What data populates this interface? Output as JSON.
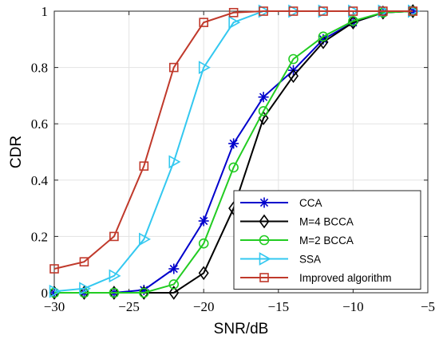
{
  "chart_data": {
    "type": "line",
    "xlabel": "SNR/dB",
    "ylabel": "CDR",
    "xlim": [
      -30,
      -5
    ],
    "ylim": [
      0,
      1
    ],
    "xticks": [
      -30,
      -25,
      -20,
      -15,
      -10,
      -5
    ],
    "xtick_labels": [
      "−30",
      "−25",
      "−20",
      "−15",
      "−10",
      "−5"
    ],
    "yticks": [
      0,
      0.2,
      0.4,
      0.6,
      0.8,
      1
    ],
    "ytick_labels": [
      "0",
      "0.2",
      "0.4",
      "0.6",
      "0.8",
      "1"
    ],
    "grid": true,
    "legend_position": "bottom-right",
    "series": [
      {
        "name": "CCA",
        "color": "#0000cc",
        "marker": "asterisk",
        "x": [
          -30,
          -28,
          -26,
          -24,
          -22,
          -20,
          -18,
          -16,
          -14,
          -12,
          -10,
          -8,
          -6
        ],
        "y": [
          0,
          0,
          0,
          0.01,
          0.085,
          0.255,
          0.53,
          0.695,
          0.79,
          0.9,
          0.96,
          0.995,
          1
        ]
      },
      {
        "name": "M=4 BCCA",
        "color": "#000000",
        "marker": "diamond",
        "x": [
          -30,
          -28,
          -26,
          -24,
          -22,
          -20,
          -18,
          -16,
          -14,
          -12,
          -10,
          -8,
          -6
        ],
        "y": [
          0,
          0,
          0,
          0,
          0,
          0.07,
          0.3,
          0.62,
          0.77,
          0.89,
          0.96,
          0.995,
          1
        ]
      },
      {
        "name": "M=2 BCCA",
        "color": "#22cc22",
        "marker": "circle",
        "x": [
          -30,
          -28,
          -26,
          -24,
          -22,
          -20,
          -18,
          -16,
          -14,
          -12,
          -10,
          -8,
          -6
        ],
        "y": [
          0,
          0,
          0,
          0,
          0.03,
          0.175,
          0.445,
          0.645,
          0.83,
          0.91,
          0.965,
          0.995,
          1
        ]
      },
      {
        "name": "SSA",
        "color": "#33c8f0",
        "marker": "triangle-right",
        "x": [
          -30,
          -28,
          -26,
          -24,
          -22,
          -20,
          -18,
          -16,
          -14,
          -12,
          -10,
          -8,
          -6
        ],
        "y": [
          0.005,
          0.015,
          0.06,
          0.19,
          0.465,
          0.8,
          0.96,
          1,
          1,
          1,
          1,
          1,
          1
        ]
      },
      {
        "name": "Improved algorithm",
        "color": "#c0392b",
        "marker": "square",
        "x": [
          -30,
          -28,
          -26,
          -24,
          -22,
          -20,
          -18,
          -16,
          -14,
          -12,
          -10,
          -8,
          -6
        ],
        "y": [
          0.085,
          0.11,
          0.2,
          0.45,
          0.8,
          0.96,
          0.995,
          1,
          1,
          1,
          1,
          1,
          1
        ]
      }
    ]
  }
}
